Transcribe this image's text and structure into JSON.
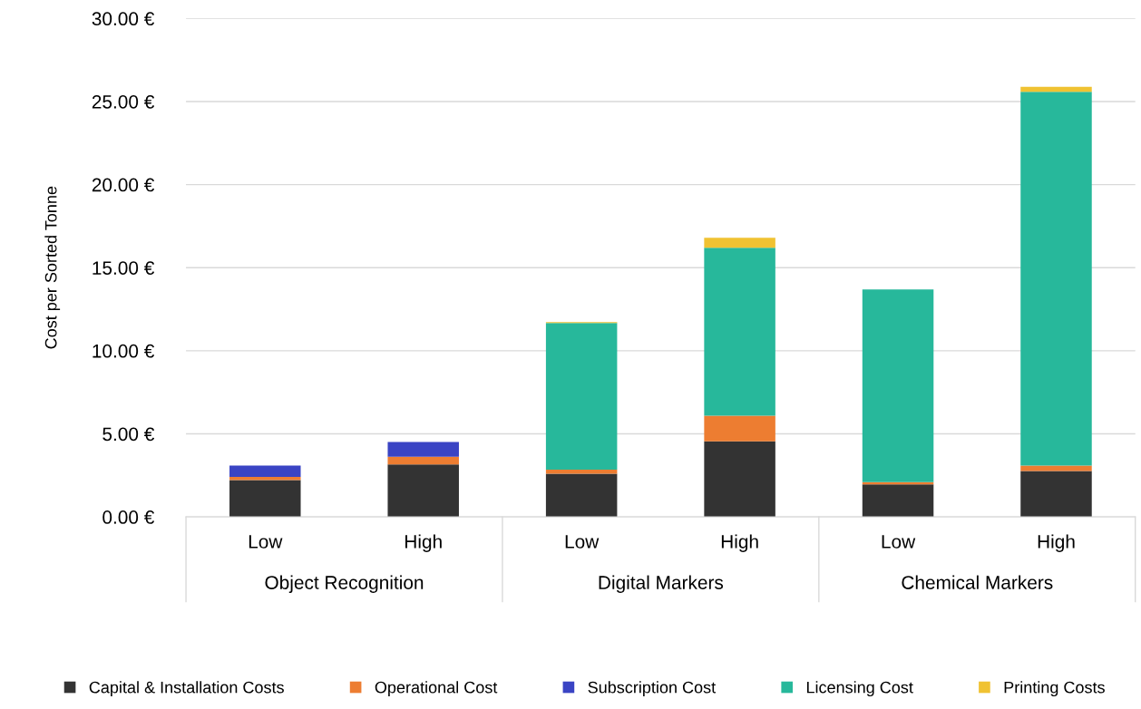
{
  "chart_data": {
    "type": "bar",
    "stacked": true,
    "ylabel": "Cost per Sorted Tonne",
    "categories": [
      "Low",
      "High",
      "Low",
      "High",
      "Low",
      "High"
    ],
    "annotations": [
      "Object Recognition",
      "Digital Markers",
      "Chemical Markers"
    ],
    "series": [
      {
        "name": "Capital & Installation Costs",
        "color": "#333333",
        "values": [
          2.22,
          3.15,
          2.6,
          4.55,
          1.95,
          2.76
        ]
      },
      {
        "name": "Operational Cost",
        "color": "#ed7d31",
        "values": [
          0.18,
          0.47,
          0.24,
          1.54,
          0.14,
          0.33
        ]
      },
      {
        "name": "Subscription Cost",
        "color": "#3a44c4",
        "values": [
          0.69,
          0.89,
          0,
          0,
          0,
          0
        ]
      },
      {
        "name": "Licensing Cost",
        "color": "#27b89b",
        "values": [
          0,
          0,
          8.83,
          10.11,
          11.6,
          22.5
        ]
      },
      {
        "name": "Printing Costs",
        "color": "#f0c232",
        "values": [
          0,
          0,
          0.06,
          0.6,
          0,
          0.29
        ]
      }
    ],
    "ylim": [
      0,
      30
    ],
    "yticks": [
      {
        "value": 0,
        "label": "0.00 €"
      },
      {
        "value": 5,
        "label": "5.00 €"
      },
      {
        "value": 10,
        "label": "10.00 €"
      },
      {
        "value": 15,
        "label": "15.00 €"
      },
      {
        "value": 20,
        "label": "20.00 €"
      },
      {
        "value": 25,
        "label": "25.00 €"
      },
      {
        "value": 30,
        "label": "30.00 €"
      }
    ],
    "grid": "y",
    "legend": "bottom"
  }
}
